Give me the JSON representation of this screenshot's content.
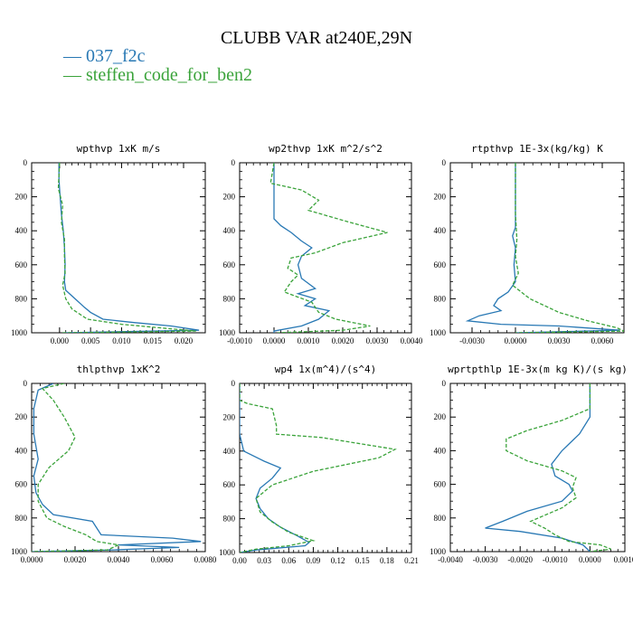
{
  "page_title": "CLUBB VAR at240E,29N",
  "legend": [
    {
      "label": "037_f2c",
      "color": "#2878b4"
    },
    {
      "label": "steffen_code_for_ben2",
      "color": "#3aa33a"
    }
  ],
  "chart_data": [
    {
      "type": "line",
      "title": "wpthvp  1xK m/s",
      "xlim": [
        -0.0045,
        0.0235
      ],
      "ylim": [
        1000,
        0
      ],
      "xticks": [
        0.0,
        0.005,
        0.01,
        0.015,
        0.02
      ],
      "xtick_labels": [
        "0.000",
        "0.005",
        "0.010",
        "0.015",
        "0.020"
      ],
      "yticks": [
        0,
        200,
        400,
        600,
        800,
        1000
      ],
      "ytick_labels": [
        "0",
        "200",
        "400",
        "600",
        "800",
        "1000"
      ],
      "series": [
        {
          "name": "037_f2c",
          "color": "#2878b4",
          "dashed": false,
          "points": [
            [
              -0.0001,
              0
            ],
            [
              -0.0001,
              100
            ],
            [
              0.0001,
              200
            ],
            [
              0.0003,
              300
            ],
            [
              0.0006,
              400
            ],
            [
              0.0008,
              500
            ],
            [
              0.0009,
              600
            ],
            [
              0.0008,
              700
            ],
            [
              0.001,
              750
            ],
            [
              0.0025,
              800
            ],
            [
              0.004,
              850
            ],
            [
              0.005,
              880
            ],
            [
              0.007,
              920
            ],
            [
              0.012,
              940
            ],
            [
              0.018,
              960
            ],
            [
              0.0225,
              985
            ],
            [
              0.0005,
              1000
            ]
          ]
        },
        {
          "name": "steffen_code_for_ben2",
          "color": "#3aa33a",
          "dashed": true,
          "points": [
            [
              0.0,
              0
            ],
            [
              -0.0002,
              150
            ],
            [
              0.0005,
              250
            ],
            [
              0.0003,
              350
            ],
            [
              0.0008,
              450
            ],
            [
              0.0008,
              550
            ],
            [
              0.0009,
              650
            ],
            [
              0.0005,
              720
            ],
            [
              0.001,
              800
            ],
            [
              0.002,
              860
            ],
            [
              0.0045,
              920
            ],
            [
              0.01,
              950
            ],
            [
              0.016,
              970
            ],
            [
              0.022,
              990
            ],
            [
              0.0005,
              1000
            ]
          ]
        }
      ]
    },
    {
      "type": "line",
      "title": "wp2thvp  1xK m^2/s^2",
      "xlim": [
        -0.001,
        0.004
      ],
      "ylim": [
        1000,
        0
      ],
      "xticks": [
        -0.001,
        0.0,
        0.001,
        0.002,
        0.003,
        0.004
      ],
      "xtick_labels": [
        "-0.0010",
        "0.0000",
        "0.0010",
        "0.0020",
        "0.0030",
        "0.0040"
      ],
      "yticks": [
        0,
        200,
        400,
        600,
        800,
        1000
      ],
      "ytick_labels": [
        "0",
        "200",
        "400",
        "600",
        "800",
        "1000"
      ],
      "series": [
        {
          "name": "037_f2c",
          "color": "#2878b4",
          "dashed": false,
          "points": [
            [
              0.0,
              0
            ],
            [
              0.0,
              200
            ],
            [
              0.0,
              330
            ],
            [
              0.0002,
              370
            ],
            [
              0.0005,
              410
            ],
            [
              0.0008,
              460
            ],
            [
              0.0011,
              500
            ],
            [
              0.0008,
              550
            ],
            [
              0.0007,
              600
            ],
            [
              0.0008,
              680
            ],
            [
              0.0012,
              740
            ],
            [
              0.0007,
              770
            ],
            [
              0.0012,
              800
            ],
            [
              0.0009,
              840
            ],
            [
              0.0016,
              870
            ],
            [
              0.0013,
              920
            ],
            [
              0.0008,
              960
            ],
            [
              0.0,
              990
            ],
            [
              0.0,
              1000
            ]
          ]
        },
        {
          "name": "steffen_code_for_ben2",
          "color": "#3aa33a",
          "dashed": true,
          "points": [
            [
              0.0,
              0
            ],
            [
              -0.0001,
              120
            ],
            [
              0.0008,
              160
            ],
            [
              0.0013,
              220
            ],
            [
              0.001,
              280
            ],
            [
              0.0022,
              350
            ],
            [
              0.0033,
              410
            ],
            [
              0.002,
              470
            ],
            [
              0.0012,
              530
            ],
            [
              0.0005,
              560
            ],
            [
              0.0004,
              620
            ],
            [
              0.0007,
              660
            ],
            [
              0.0005,
              700
            ],
            [
              0.0003,
              760
            ],
            [
              0.0011,
              820
            ],
            [
              0.0013,
              880
            ],
            [
              0.0018,
              920
            ],
            [
              0.0028,
              960
            ],
            [
              0.002,
              985
            ],
            [
              0.0001,
              1000
            ]
          ]
        }
      ]
    },
    {
      "type": "line",
      "title": "rtpthvp  1E-3x(kg/kg) K",
      "xlim": [
        -0.0045,
        0.0075
      ],
      "ylim": [
        1000,
        0
      ],
      "xticks": [
        -0.003,
        0.0,
        0.003,
        0.006
      ],
      "xtick_labels": [
        "-0.0030",
        "0.0000",
        "0.0030",
        "0.0060"
      ],
      "yticks": [
        0,
        200,
        400,
        600,
        800,
        1000
      ],
      "ytick_labels": [
        "0",
        "200",
        "400",
        "600",
        "800",
        "1000"
      ],
      "series": [
        {
          "name": "037_f2c",
          "color": "#2878b4",
          "dashed": false,
          "points": [
            [
              0.0,
              0
            ],
            [
              0.0,
              200
            ],
            [
              0.0,
              380
            ],
            [
              -0.0002,
              430
            ],
            [
              0.0,
              500
            ],
            [
              -0.0001,
              600
            ],
            [
              0.0,
              700
            ],
            [
              -0.0005,
              760
            ],
            [
              -0.0012,
              800
            ],
            [
              -0.0015,
              840
            ],
            [
              -0.001,
              870
            ],
            [
              -0.0025,
              900
            ],
            [
              -0.0033,
              930
            ],
            [
              -0.001,
              950
            ],
            [
              0.003,
              960
            ],
            [
              0.0072,
              985
            ],
            [
              0.0,
              1000
            ]
          ]
        },
        {
          "name": "steffen_code_for_ben2",
          "color": "#3aa33a",
          "dashed": true,
          "points": [
            [
              0.0,
              0
            ],
            [
              0.0,
              300
            ],
            [
              0.0001,
              450
            ],
            [
              0.0,
              550
            ],
            [
              0.0002,
              650
            ],
            [
              -0.0002,
              720
            ],
            [
              0.001,
              800
            ],
            [
              0.003,
              880
            ],
            [
              0.005,
              930
            ],
            [
              0.007,
              970
            ],
            [
              0.0075,
              990
            ],
            [
              0.0,
              1000
            ]
          ]
        }
      ]
    },
    {
      "type": "line",
      "title": "thlpthvp  1xK^2",
      "xlim": [
        0.0,
        0.008
      ],
      "ylim": [
        1000,
        0
      ],
      "xticks": [
        0.0,
        0.002,
        0.004,
        0.006,
        0.008
      ],
      "xtick_labels": [
        "0.0000",
        "0.0020",
        "0.0040",
        "0.0060",
        "0.0080"
      ],
      "yticks": [
        0,
        200,
        400,
        600,
        800,
        1000
      ],
      "ytick_labels": [
        "0",
        "200",
        "400",
        "600",
        "800",
        "1000"
      ],
      "series": [
        {
          "name": "037_f2c",
          "color": "#2878b4",
          "dashed": false,
          "points": [
            [
              0.001,
              0
            ],
            [
              0.0003,
              40
            ],
            [
              0.0001,
              150
            ],
            [
              0.0001,
              300
            ],
            [
              0.0003,
              450
            ],
            [
              0.0001,
              550
            ],
            [
              0.0002,
              650
            ],
            [
              0.0005,
              720
            ],
            [
              0.001,
              780
            ],
            [
              0.0028,
              820
            ],
            [
              0.0032,
              900
            ],
            [
              0.0065,
              920
            ],
            [
              0.0078,
              940
            ],
            [
              0.004,
              960
            ],
            [
              0.0068,
              975
            ],
            [
              0.0038,
              990
            ],
            [
              0.0,
              1000
            ]
          ]
        },
        {
          "name": "steffen_code_for_ben2",
          "color": "#3aa33a",
          "dashed": true,
          "points": [
            [
              0.0015,
              0
            ],
            [
              0.0005,
              30
            ],
            [
              0.001,
              100
            ],
            [
              0.0015,
              200
            ],
            [
              0.002,
              320
            ],
            [
              0.0017,
              400
            ],
            [
              0.0008,
              500
            ],
            [
              0.0003,
              600
            ],
            [
              0.0003,
              700
            ],
            [
              0.0007,
              800
            ],
            [
              0.0015,
              850
            ],
            [
              0.0025,
              900
            ],
            [
              0.003,
              940
            ],
            [
              0.004,
              960
            ],
            [
              0.0035,
              990
            ],
            [
              0.0,
              1000
            ]
          ]
        }
      ]
    },
    {
      "type": "line",
      "title": "wp4  1x(m^4)/(s^4)",
      "xlim": [
        0.0,
        0.21
      ],
      "ylim": [
        1000,
        0
      ],
      "xticks": [
        0.0,
        0.03,
        0.06,
        0.09,
        0.12,
        0.15,
        0.18,
        0.21
      ],
      "xtick_labels": [
        "0.00",
        "0.03",
        "0.06",
        "0.09",
        "0.12",
        "0.15",
        "0.18",
        "0.21"
      ],
      "yticks": [
        0,
        200,
        400,
        600,
        800,
        1000
      ],
      "ytick_labels": [
        "0",
        "200",
        "400",
        "600",
        "800",
        "1000"
      ],
      "series": [
        {
          "name": "037_f2c",
          "color": "#2878b4",
          "dashed": false,
          "points": [
            [
              0.0,
              0
            ],
            [
              0.0,
              300
            ],
            [
              0.005,
              400
            ],
            [
              0.03,
              460
            ],
            [
              0.05,
              500
            ],
            [
              0.04,
              560
            ],
            [
              0.025,
              620
            ],
            [
              0.02,
              680
            ],
            [
              0.025,
              740
            ],
            [
              0.035,
              800
            ],
            [
              0.05,
              850
            ],
            [
              0.07,
              900
            ],
            [
              0.085,
              940
            ],
            [
              0.08,
              960
            ],
            [
              0.02,
              985
            ],
            [
              0.0,
              1000
            ]
          ]
        },
        {
          "name": "steffen_code_for_ben2",
          "color": "#3aa33a",
          "dashed": true,
          "points": [
            [
              0.0,
              0
            ],
            [
              0.0,
              100
            ],
            [
              0.01,
              120
            ],
            [
              0.04,
              150
            ],
            [
              0.045,
              250
            ],
            [
              0.045,
              300
            ],
            [
              0.1,
              320
            ],
            [
              0.19,
              390
            ],
            [
              0.17,
              440
            ],
            [
              0.09,
              520
            ],
            [
              0.04,
              600
            ],
            [
              0.02,
              680
            ],
            [
              0.025,
              760
            ],
            [
              0.04,
              820
            ],
            [
              0.06,
              880
            ],
            [
              0.09,
              930
            ],
            [
              0.06,
              960
            ],
            [
              0.02,
              980
            ],
            [
              0.0,
              1000
            ]
          ]
        }
      ]
    },
    {
      "type": "line",
      "title": "wprtpthlp  1E-3x(m kg K)/(s kg)",
      "xlim": [
        -0.004,
        0.001
      ],
      "ylim": [
        1000,
        0
      ],
      "xticks": [
        -0.004,
        -0.003,
        -0.002,
        -0.001,
        0.0,
        0.001
      ],
      "xtick_labels": [
        "-0.0040",
        "-0.0030",
        "-0.0020",
        "-0.0010",
        "0.0000",
        "0.0010"
      ],
      "yticks": [
        0,
        200,
        400,
        600,
        800,
        1000
      ],
      "ytick_labels": [
        "0",
        "200",
        "400",
        "600",
        "800",
        "1000"
      ],
      "series": [
        {
          "name": "037_f2c",
          "color": "#2878b4",
          "dashed": false,
          "points": [
            [
              0.0,
              0
            ],
            [
              0.0,
              200
            ],
            [
              -0.0003,
              300
            ],
            [
              -0.0008,
              400
            ],
            [
              -0.0011,
              480
            ],
            [
              -0.001,
              550
            ],
            [
              -0.0006,
              600
            ],
            [
              -0.0005,
              640
            ],
            [
              -0.0008,
              700
            ],
            [
              -0.0018,
              760
            ],
            [
              -0.0025,
              820
            ],
            [
              -0.003,
              860
            ],
            [
              -0.002,
              880
            ],
            [
              -0.0008,
              920
            ],
            [
              -0.0002,
              960
            ],
            [
              0.0,
              1000
            ]
          ]
        },
        {
          "name": "steffen_code_for_ben2",
          "color": "#3aa33a",
          "dashed": true,
          "points": [
            [
              0.0,
              0
            ],
            [
              0.0,
              150
            ],
            [
              -0.0008,
              220
            ],
            [
              -0.0018,
              280
            ],
            [
              -0.0024,
              330
            ],
            [
              -0.0024,
              400
            ],
            [
              -0.0018,
              460
            ],
            [
              -0.0008,
              520
            ],
            [
              -0.0004,
              560
            ],
            [
              -0.0005,
              620
            ],
            [
              -0.0004,
              680
            ],
            [
              -0.0008,
              740
            ],
            [
              -0.0017,
              820
            ],
            [
              -0.0013,
              860
            ],
            [
              -0.001,
              900
            ],
            [
              -0.0006,
              940
            ],
            [
              0.0003,
              960
            ],
            [
              0.0006,
              985
            ],
            [
              0.0,
              1000
            ]
          ]
        }
      ]
    }
  ]
}
